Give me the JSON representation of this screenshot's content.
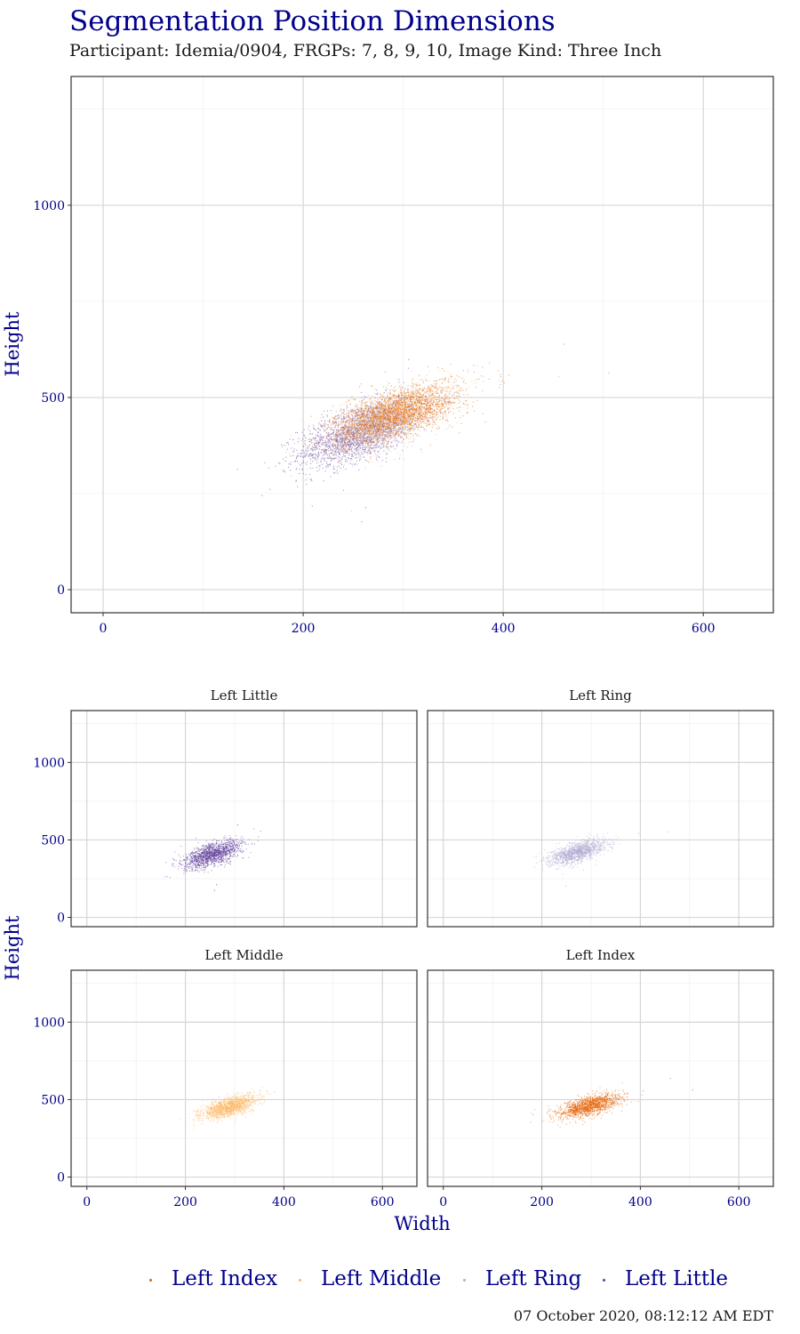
{
  "title": "Segmentation Position Dimensions",
  "subtitle": "Participant: Idemia/0904, FRGPs: 7, 8, 9, 10, Image Kind: Three Inch",
  "timestamp": "07 October 2020, 08:12:12 AM EDT",
  "colors": {
    "title": "#00008b",
    "Left Index": "#e66101",
    "Left Middle": "#fdb863",
    "Left Ring": "#b2abd2",
    "Left Little": "#5e3c99"
  },
  "chart_data": [
    {
      "type": "scatter",
      "panel": "combined",
      "xlabel": "",
      "ylabel": "Height",
      "xlim": [
        -32,
        670
      ],
      "ylim": [
        -60,
        1335
      ],
      "xticks": [
        "0",
        "200",
        "400",
        "600"
      ],
      "yticks": [
        "0",
        "500",
        "1000"
      ],
      "grid": true,
      "series": [
        {
          "name": "Left Little",
          "center": [
            255,
            410
          ],
          "sd": [
            30,
            45
          ],
          "corr": 0.62,
          "outliers": [
            [
              305,
              600
            ],
            [
              262,
              215
            ],
            [
              258,
              178
            ]
          ]
        },
        {
          "name": "Left Ring",
          "center": [
            272,
            425
          ],
          "sd": [
            28,
            40
          ],
          "corr": 0.62,
          "outliers": [
            [
              455,
              555
            ],
            [
              395,
              545
            ],
            [
              248,
              205
            ]
          ]
        },
        {
          "name": "Left Middle",
          "center": [
            288,
            455
          ],
          "sd": [
            28,
            38
          ],
          "corr": 0.62,
          "outliers": [
            [
              380,
              555
            ]
          ]
        },
        {
          "name": "Left Index",
          "center": [
            295,
            460
          ],
          "sd": [
            32,
            40
          ],
          "corr": 0.62,
          "outliers": [
            [
              405,
              560
            ],
            [
              460,
              640
            ],
            [
              505,
              565
            ]
          ]
        }
      ]
    },
    {
      "type": "scatter",
      "panel": "facets",
      "xlabel": "Width",
      "ylabel": "Height",
      "xlim": [
        -32,
        670
      ],
      "ylim": [
        -60,
        1335
      ],
      "xticks": [
        "0",
        "200",
        "400",
        "600"
      ],
      "yticks": [
        "0",
        "500",
        "1000"
      ],
      "grid": true,
      "facets": [
        {
          "label": "Left Little",
          "series": "Left Little"
        },
        {
          "label": "Left Ring",
          "series": "Left Ring"
        },
        {
          "label": "Left Middle",
          "series": "Left Middle"
        },
        {
          "label": "Left Index",
          "series": "Left Index"
        }
      ]
    }
  ],
  "legend": {
    "position": "bottom",
    "items": [
      "Left Index",
      "Left Middle",
      "Left Ring",
      "Left Little"
    ]
  }
}
